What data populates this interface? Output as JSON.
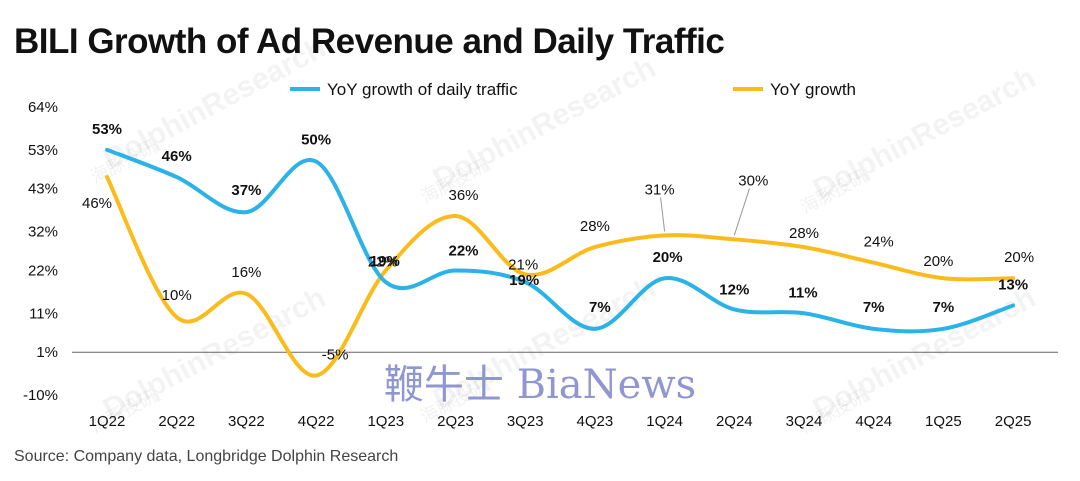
{
  "title": "BILI Growth of Ad Revenue and Daily Traffic",
  "source": "Source: Company data, Longbridge Dolphin Research",
  "watermarks": {
    "brand": "DolphinResearch",
    "brand_cn": "海豚投研",
    "overlay": "鞭牛士 BiaNews"
  },
  "colors": {
    "traffic": "#2bb2e6",
    "ad": "#fbbb1b",
    "axis": "#666666"
  },
  "chart_data": {
    "type": "line",
    "categories": [
      "1Q22",
      "2Q22",
      "3Q22",
      "4Q22",
      "1Q23",
      "2Q23",
      "3Q23",
      "4Q23",
      "1Q24",
      "2Q24",
      "3Q24",
      "4Q24",
      "1Q25",
      "2Q25"
    ],
    "y_ticks": [
      64,
      53,
      43,
      32,
      22,
      11,
      1,
      -10
    ],
    "y_tick_labels": [
      "64%",
      "53%",
      "43%",
      "32%",
      "22%",
      "11%",
      "1%",
      "-10%"
    ],
    "ylim": [
      -10,
      64
    ],
    "legend_position": "top",
    "series": [
      {
        "name": "YoY growth of daily traffic",
        "color": "#2bb2e6",
        "values": [
          53,
          46,
          37,
          50,
          19,
          22,
          19,
          7,
          20,
          12,
          11,
          7,
          7,
          13
        ],
        "labels": [
          "53%",
          "46%",
          "37%",
          "50%",
          "19%",
          "22%",
          "19%",
          "7%",
          "20%",
          "12%",
          "11%",
          "7%",
          "7%",
          "13%"
        ]
      },
      {
        "name": "YoY growth",
        "color": "#fbbb1b",
        "values": [
          46,
          10,
          16,
          -5,
          22,
          36,
          21,
          28,
          31,
          30,
          28,
          24,
          20,
          20
        ],
        "labels": [
          "46%",
          "10%",
          "16%",
          "-5%",
          "22%",
          "36%",
          "21%",
          "28%",
          "31%",
          "30%",
          "28%",
          "24%",
          "20%",
          "20%"
        ]
      }
    ]
  }
}
